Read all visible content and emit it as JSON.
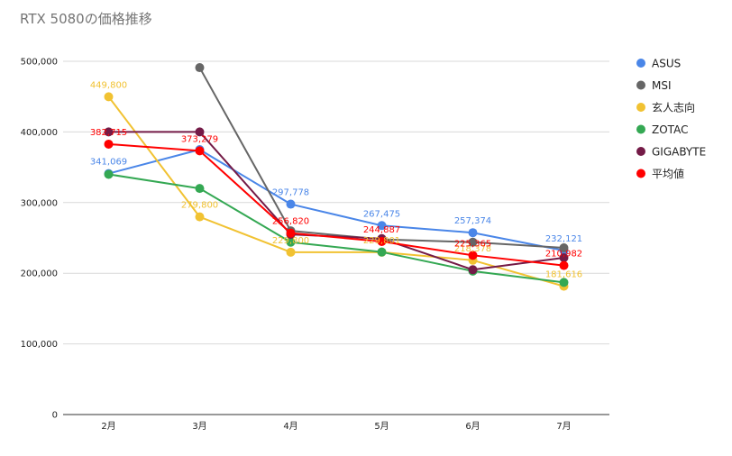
{
  "chart_data": {
    "type": "line",
    "title": "RTX 5080の価格推移",
    "xlabel": "",
    "ylabel": "",
    "categories": [
      "2月",
      "3月",
      "4月",
      "5月",
      "6月",
      "7月"
    ],
    "ylim": [
      0,
      500000
    ],
    "yticks": [
      0,
      100000,
      200000,
      300000,
      400000,
      500000
    ],
    "ytick_labels": [
      "0",
      "100,000",
      "200,000",
      "300,000",
      "400,000",
      "500,000"
    ],
    "grid": true,
    "legend": "right",
    "series": [
      {
        "name": "ASUS",
        "color": "#4a86e8",
        "values": [
          341069,
          375000,
          297778,
          267475,
          257374,
          232121
        ],
        "labels": [
          "341,069",
          "",
          "297,778",
          "267,475",
          "257,374",
          "232,121"
        ]
      },
      {
        "name": "MSI",
        "color": "#666666",
        "values": [
          null,
          491000,
          260000,
          248000,
          244000,
          236000
        ],
        "labels": [
          "",
          "",
          "",
          "",
          "",
          ""
        ]
      },
      {
        "name": "玄人志向",
        "color": "#f1c232",
        "values": [
          449800,
          279800,
          229800,
          229801,
          218378,
          181616
        ],
        "labels": [
          "449,800",
          "279,800",
          "229,800",
          "229,801",
          "218,378",
          "181,616"
        ]
      },
      {
        "name": "ZOTAC",
        "color": "#34a853",
        "values": [
          340000,
          320000,
          244000,
          230000,
          203000,
          187000
        ],
        "labels": [
          "",
          "",
          "",
          "",
          "",
          ""
        ]
      },
      {
        "name": "GIGABYTE",
        "color": "#741b47",
        "values": [
          400000,
          400000,
          255000,
          249000,
          205000,
          222000
        ],
        "labels": [
          "",
          "",
          "",
          "",
          "",
          ""
        ]
      },
      {
        "name": "平均値",
        "color": "#ff0000",
        "values": [
          382715,
          373279,
          256820,
          244887,
          225365,
          210982
        ],
        "labels": [
          "382,715",
          "373,279",
          "256,820",
          "244,887",
          "225,365",
          "210,982"
        ]
      }
    ]
  }
}
